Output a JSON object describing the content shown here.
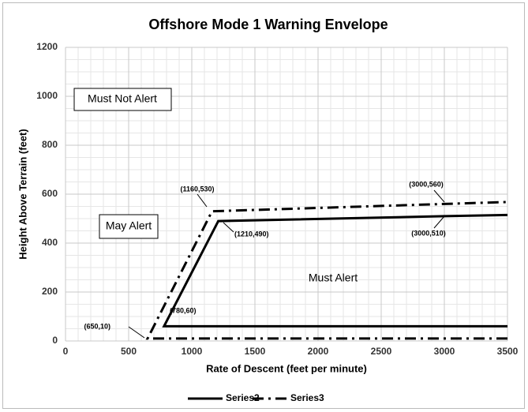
{
  "chart_data": {
    "type": "line",
    "title": "Offshore Mode 1 Warning Envelope",
    "x_label": "Rate of Descent (feet per minute)",
    "y_label": "Height Above Terrain (feet)",
    "series": [
      {
        "name": "Series2",
        "color": "#000000",
        "dash": "solid",
        "x": [
          3500,
          780,
          1210,
          3000,
          3500
        ],
        "values": [
          60,
          60,
          490,
          510,
          515
        ]
      },
      {
        "name": "Series3",
        "color": "#000000",
        "dash": "dashdot",
        "x": [
          3500,
          650,
          1160,
          3000,
          3500
        ],
        "values": [
          10,
          10,
          530,
          560,
          568
        ]
      }
    ],
    "xlim": [
      0,
      3500
    ],
    "xticks": [
      0,
      500,
      1000,
      1500,
      2000,
      2500,
      3000,
      3500
    ],
    "ylim": [
      0,
      1200
    ],
    "yticks": [
      0,
      200,
      400,
      600,
      800,
      1000,
      1200
    ],
    "xminor": 100,
    "yminor": 50,
    "grid": true,
    "legend": "bottom",
    "annotations": [
      "(650,10)",
      "(780,60)",
      "(1160,530)",
      "(1210,490)",
      "(3000,560)",
      "(3000,510)",
      "Must Not Alert",
      "May Alert",
      "Must  Alert"
    ]
  }
}
